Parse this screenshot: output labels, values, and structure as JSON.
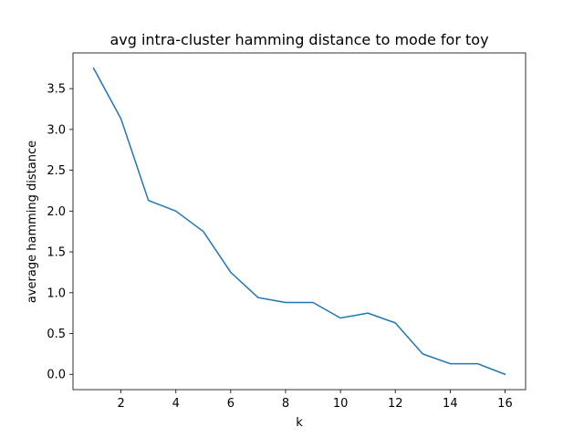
{
  "chart_data": {
    "type": "line",
    "title": "avg intra-cluster hamming distance to mode for toy",
    "xlabel": "k",
    "ylabel": "average hamming distance",
    "x": [
      1,
      2,
      3,
      4,
      5,
      6,
      7,
      8,
      9,
      10,
      11,
      12,
      13,
      14,
      15,
      16
    ],
    "series": [
      {
        "values": [
          3.75,
          3.13,
          2.13,
          2.0,
          1.75,
          1.25,
          0.94,
          0.88,
          0.88,
          0.69,
          0.75,
          0.63,
          0.25,
          0.13,
          0.13,
          0.0
        ]
      }
    ],
    "xticks": [
      2,
      4,
      6,
      8,
      10,
      12,
      14,
      16
    ],
    "yticks": [
      0.0,
      0.5,
      1.0,
      1.5,
      2.0,
      2.5,
      3.0,
      3.5
    ],
    "xtick_labels": [
      "2",
      "4",
      "6",
      "8",
      "10",
      "12",
      "14",
      "16"
    ],
    "ytick_labels": [
      "0.0",
      "0.5",
      "1.0",
      "1.5",
      "2.0",
      "2.5",
      "3.0",
      "3.5"
    ],
    "xlim": [
      0.25,
      16.75
    ],
    "ylim": [
      -0.1875,
      3.9375
    ],
    "grid": false,
    "line_color": "#1f77b4"
  }
}
